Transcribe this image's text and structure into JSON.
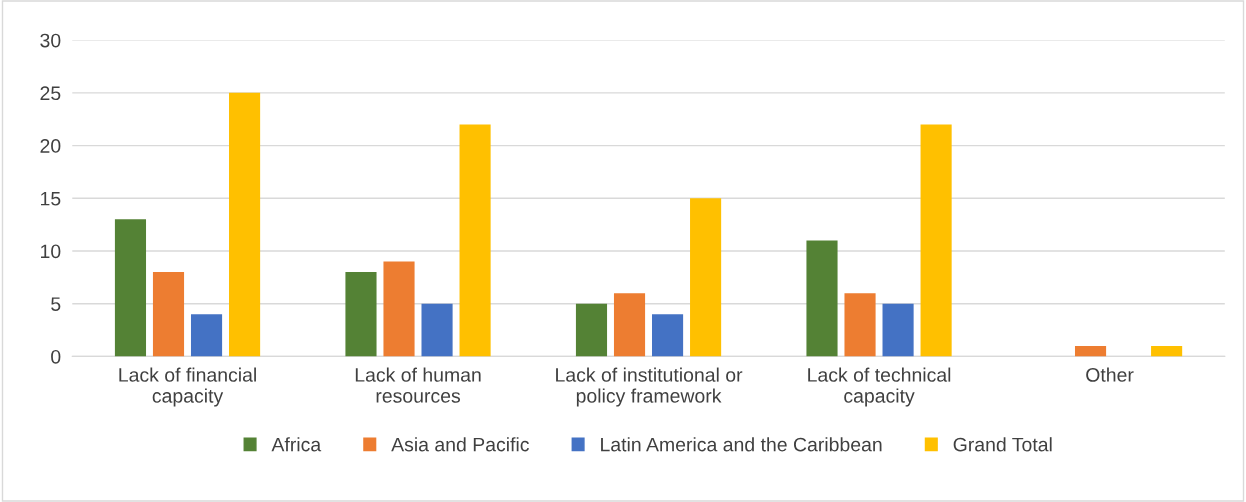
{
  "chart_data": {
    "type": "bar",
    "categories": [
      "Lack of financial\ncapacity",
      "Lack of human\nresources",
      "Lack of institutional or\npolicy framework",
      "Lack of technical\ncapacity",
      "Other"
    ],
    "series": [
      {
        "name": "Africa",
        "color": "#548235",
        "values": [
          13,
          8,
          5,
          11,
          null
        ]
      },
      {
        "name": "Asia and Pacific",
        "color": "#ed7d31",
        "values": [
          8,
          9,
          6,
          6,
          1
        ]
      },
      {
        "name": "Latin America and the Caribbean",
        "color": "#4472c4",
        "values": [
          4,
          5,
          4,
          5,
          null
        ]
      },
      {
        "name": "Grand Total",
        "color": "#ffc000",
        "values": [
          25,
          22,
          15,
          22,
          1
        ]
      }
    ],
    "ylim": [
      0,
      30
    ],
    "yticks": [
      0,
      5,
      10,
      15,
      20,
      25,
      30
    ],
    "grid": "y",
    "legend": "bottom"
  }
}
